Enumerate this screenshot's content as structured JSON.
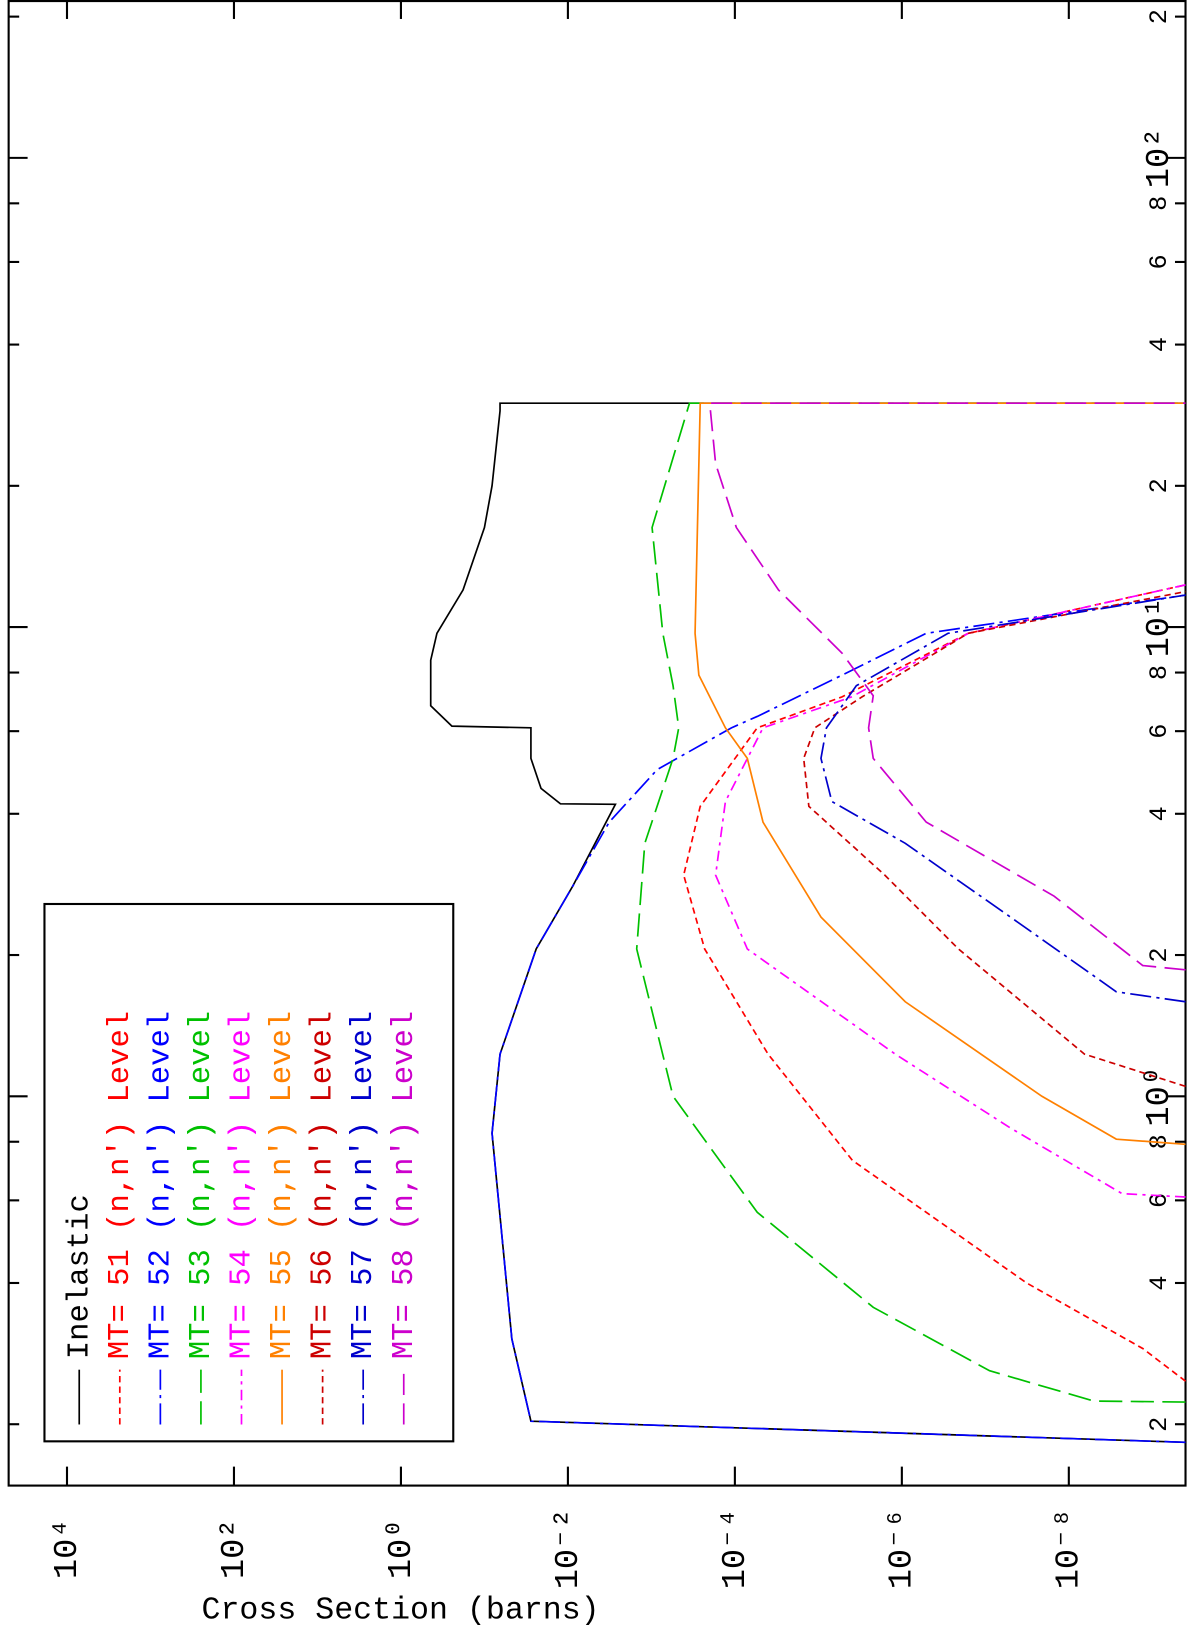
{
  "chart_data": {
    "type": "line",
    "y_label": "Cross Section (barns)",
    "xscale": "log",
    "yscale": "log",
    "grid": false,
    "xlim": [
      0.148,
      217
    ],
    "ylim": [
      4e-10,
      50000
    ],
    "xticks": [
      {
        "value": 0.2,
        "label": "2"
      },
      {
        "value": 0.4,
        "label": "4"
      },
      {
        "value": 0.6,
        "label": "6"
      },
      {
        "value": 0.8,
        "label": "8"
      },
      {
        "value": 1,
        "label": "10⁰"
      },
      {
        "value": 2,
        "label": "2"
      },
      {
        "value": 4,
        "label": "4"
      },
      {
        "value": 6,
        "label": "6"
      },
      {
        "value": 8,
        "label": "8"
      },
      {
        "value": 10,
        "label": "10¹"
      },
      {
        "value": 20,
        "label": "2"
      },
      {
        "value": 40,
        "label": "4"
      },
      {
        "value": 60,
        "label": "6"
      },
      {
        "value": 80,
        "label": "8"
      },
      {
        "value": 100,
        "label": "10²"
      },
      {
        "value": 200,
        "label": "2"
      }
    ],
    "yticks": [
      {
        "value": 10000,
        "label": "10⁴"
      },
      {
        "value": 100,
        "label": "10²"
      },
      {
        "value": 1,
        "label": "10⁰"
      },
      {
        "value": 0.01,
        "label": "10⁻²"
      },
      {
        "value": 0.0001,
        "label": "10⁻⁴"
      },
      {
        "value": 1e-06,
        "label": "10⁻⁶"
      },
      {
        "value": 1e-08,
        "label": "10⁻⁸"
      }
    ],
    "series": [
      {
        "name": "Inelastic",
        "color": "#000000",
        "dash": "none",
        "x": [
          0.183,
          0.203,
          0.304,
          0.834,
          1.23,
          2.06,
          2.81,
          4.19,
          4.2,
          4.53,
          5.25,
          6.1,
          6.15,
          6.8,
          8.5,
          9.7,
          12,
          16.3,
          20,
          28.9,
          30,
          30
        ],
        "values": [
          4e-10,
          0.0277,
          0.047,
          0.081,
          0.065,
          0.024,
          0.0087,
          0.0027,
          0.0123,
          0.021,
          0.0277,
          0.0277,
          0.245,
          0.44,
          0.44,
          0.37,
          0.18,
          0.1,
          0.081,
          0.065,
          0.065,
          4e-10
        ]
      },
      {
        "name": "MT= 51 (n,n') Level",
        "color": "#ff0000",
        "dash": "6 4",
        "x": [
          0.247,
          0.29,
          0.4,
          0.73,
          1.23,
          2.06,
          2.96,
          4.15,
          6.1,
          7.1,
          9.7,
          12.3
        ],
        "values": [
          4e-10,
          1.3e-09,
          3.2e-08,
          3.9e-06,
          4e-05,
          0.00023,
          0.00041,
          0.00026,
          5.4e-05,
          5.2e-06,
          1.6e-07,
          4e-10
        ]
      },
      {
        "name": "MT= 52 (n,n') Level",
        "color": "#0000ff",
        "dash": "20 5 3 5",
        "x": [
          0.183,
          0.203,
          0.304,
          0.834,
          1.23,
          2.06,
          2.81,
          3.84,
          4.97,
          6.1,
          6.45,
          7.9,
          9.7,
          11.7
        ],
        "values": [
          4e-10,
          0.0277,
          0.047,
          0.081,
          0.065,
          0.024,
          0.0087,
          0.0032,
          0.00085,
          0.00011,
          5.4e-05,
          5.2e-06,
          5.1e-07,
          4e-10
        ]
      },
      {
        "name": "MT= 53 (n,n') Level",
        "color": "#00c000",
        "dash": "22 8",
        "x": [
          0.223,
          0.224,
          0.26,
          0.355,
          0.566,
          1,
          2.06,
          3.46,
          5.25,
          6.1,
          7.5,
          9.7,
          16.3,
          30,
          30
        ],
        "values": [
          4e-10,
          5e-09,
          8.9e-08,
          2.2e-06,
          5.4e-05,
          0.00055,
          0.0015,
          0.0012,
          0.00055,
          0.00047,
          0.00055,
          0.00073,
          0.00098,
          0.00035,
          4e-10
        ]
      },
      {
        "name": "MT= 54 (n,n') Level",
        "color": "#ff00ff",
        "dash": "10 5 3 5",
        "x": [
          0.61,
          0.62,
          0.856,
          1.23,
          2.06,
          2.96,
          4.25,
          6.1,
          7.1,
          9.7,
          12.3
        ],
        "values": [
          4e-10,
          2.3e-09,
          5e-08,
          1.2e-06,
          7.1e-05,
          0.00017,
          0.00013,
          4.6e-05,
          4e-06,
          1.6e-07,
          4e-10
        ]
      },
      {
        "name": "MT= 55 (n,n') Level",
        "color": "#ff8000",
        "dash": "none",
        "x": [
          0.79,
          0.81,
          1,
          1.59,
          2.41,
          3.84,
          5.25,
          6.1,
          7.9,
          9.7,
          30,
          30
        ],
        "values": [
          4e-10,
          2.7e-09,
          2.1e-08,
          9.1e-07,
          9.3e-06,
          4.6e-05,
          7.1e-05,
          0.00013,
          0.00027,
          0.0003,
          0.00026,
          4e-10
        ]
      },
      {
        "name": "MT= 56 (n,n') Level",
        "color": "#cc0000",
        "dash": "6 4",
        "x": [
          1.05,
          1.23,
          2.06,
          2.96,
          4.15,
          5.25,
          6.1,
          7.1,
          9.7,
          11.9
        ],
        "values": [
          4e-10,
          6.5e-09,
          2.1e-07,
          1.6e-06,
          1.3e-05,
          1.5e-05,
          1.1e-05,
          3e-06,
          1.6e-07,
          4e-10
        ]
      },
      {
        "name": "MT= 57 (n,n') Level",
        "color": "#0000cc",
        "dash": "20 5 3 5",
        "x": [
          1.59,
          1.67,
          2.41,
          3.46,
          4.25,
          5.25,
          6.1,
          7.5,
          9.7,
          11.7
        ],
        "values": [
          4e-10,
          2.7e-09,
          5e-08,
          9.1e-07,
          6.9e-06,
          9.3e-06,
          8e-06,
          3.5e-06,
          2.8e-07,
          4e-10
        ]
      },
      {
        "name": "MT= 58 (n,n') Level",
        "color": "#cc00cc",
        "dash": "20 8",
        "x": [
          1.86,
          1.9,
          2.67,
          3.84,
          5.25,
          6.1,
          7.14,
          8.8,
          12,
          16.3,
          22.3,
          30,
          30
        ],
        "values": [
          4e-10,
          1.3e-09,
          1.5e-08,
          5.1e-07,
          2.2e-06,
          2.5e-06,
          2.2e-06,
          5.2e-06,
          3e-05,
          9.6e-05,
          0.00017,
          0.0002,
          4e-10
        ]
      }
    ]
  }
}
